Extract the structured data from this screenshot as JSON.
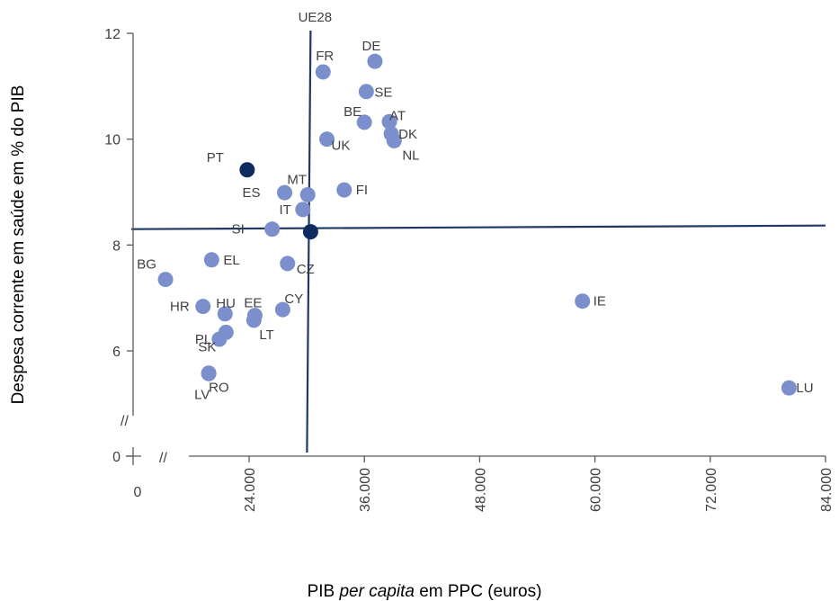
{
  "chart_data": {
    "type": "scatter",
    "title": "",
    "xlabel_parts": [
      "PIB ",
      "per capita",
      " em PPC (euros)"
    ],
    "ylabel": "Despesa corrente em saúde em % do PIB",
    "x_ticks": [
      {
        "value": 0,
        "label": "0"
      },
      {
        "value": 24000,
        "label": "24.000"
      },
      {
        "value": 36000,
        "label": "36.000"
      },
      {
        "value": 48000,
        "label": "48.000"
      },
      {
        "value": 60000,
        "label": "60.000"
      },
      {
        "value": 72000,
        "label": "72.000"
      },
      {
        "value": 84000,
        "label": "84.000"
      }
    ],
    "y_ticks": [
      {
        "value": 0,
        "label": "0"
      },
      {
        "value": 6,
        "label": "6"
      },
      {
        "value": 8,
        "label": "8"
      },
      {
        "value": 10,
        "label": "10"
      },
      {
        "value": 12,
        "label": "12"
      }
    ],
    "xlim": [
      0,
      84000
    ],
    "ylim": [
      0,
      12
    ],
    "axis_break_symbol": "//",
    "reference_lines": {
      "label": "UE28",
      "x": 30400,
      "y": 8.3
    },
    "colors": {
      "points": "#7b8fcc",
      "highlight": "#0d2b5e",
      "lines": "#1f3868",
      "axis": "#595959"
    },
    "points": [
      {
        "label": "PT",
        "x": 23800,
        "y": 9.42,
        "highlight": true
      },
      {
        "label": "UE28",
        "x": 30400,
        "y": 8.25,
        "highlight": true,
        "hide_label": true
      },
      {
        "label": "DE",
        "x": 37100,
        "y": 11.47
      },
      {
        "label": "FR",
        "x": 31700,
        "y": 11.27
      },
      {
        "label": "SE",
        "x": 36200,
        "y": 10.9
      },
      {
        "label": "BE",
        "x": 36000,
        "y": 10.32
      },
      {
        "label": "AT",
        "x": 38600,
        "y": 10.33
      },
      {
        "label": "DK",
        "x": 38800,
        "y": 10.1
      },
      {
        "label": "NL",
        "x": 39100,
        "y": 9.97
      },
      {
        "label": "UK",
        "x": 32100,
        "y": 10.0
      },
      {
        "label": "MT",
        "x": 30100,
        "y": 8.95
      },
      {
        "label": "ES",
        "x": 27700,
        "y": 8.99
      },
      {
        "label": "FI",
        "x": 33900,
        "y": 9.04
      },
      {
        "label": "IT",
        "x": 29600,
        "y": 8.67
      },
      {
        "label": "SI",
        "x": 26400,
        "y": 8.3
      },
      {
        "label": "BG",
        "x": 15300,
        "y": 7.35
      },
      {
        "label": "EL",
        "x": 20100,
        "y": 7.72
      },
      {
        "label": "CZ",
        "x": 28000,
        "y": 7.65
      },
      {
        "label": "HR",
        "x": 19200,
        "y": 6.84
      },
      {
        "label": "HU",
        "x": 21500,
        "y": 6.7
      },
      {
        "label": "EE",
        "x": 24600,
        "y": 6.67
      },
      {
        "label": "CY",
        "x": 27500,
        "y": 6.78
      },
      {
        "label": "SK",
        "x": 21600,
        "y": 6.35
      },
      {
        "label": "LT",
        "x": 24500,
        "y": 6.58
      },
      {
        "label": "PL",
        "x": 20900,
        "y": 6.22
      },
      {
        "label": "LV",
        "x": 19800,
        "y": 5.57
      },
      {
        "label": "RO",
        "x": 19800,
        "y": 5.58
      },
      {
        "label": "IE",
        "x": 58700,
        "y": 6.94
      },
      {
        "label": "LU",
        "x": 80200,
        "y": 5.3
      }
    ]
  }
}
